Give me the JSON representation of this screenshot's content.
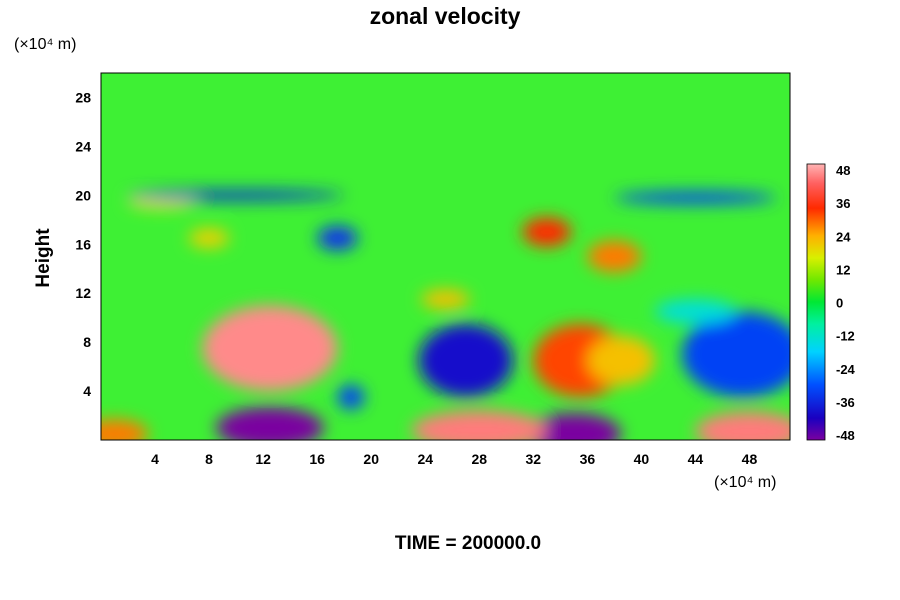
{
  "chart_data": {
    "type": "heatmap",
    "title": "zonal velocity",
    "ylabel": "Height",
    "y_unit": "(×10⁴ m)",
    "x_unit": "(×10⁴ m)",
    "footer": "TIME = 200000.0",
    "xlim": [
      0,
      51
    ],
    "ylim": [
      0,
      30
    ],
    "x_ticks": [
      4,
      8,
      12,
      16,
      20,
      24,
      28,
      32,
      36,
      40,
      44,
      48
    ],
    "y_ticks": [
      4,
      8,
      12,
      16,
      20,
      24,
      28
    ],
    "colorbar": {
      "range": [
        -48,
        48
      ],
      "ticks": [
        48,
        36,
        24,
        12,
        0,
        -12,
        -24,
        -36,
        -48
      ]
    },
    "features": [
      {
        "x": 12.5,
        "y": 7.5,
        "rx": 5.0,
        "ry": 3.5,
        "value": 45
      },
      {
        "x": 35.5,
        "y": 6.5,
        "rx": 3.5,
        "ry": 3.0,
        "value": 32
      },
      {
        "x": 38.5,
        "y": 6.5,
        "rx": 2.5,
        "ry": 2.0,
        "value": 22
      },
      {
        "x": 27.0,
        "y": 6.5,
        "rx": 3.5,
        "ry": 3.0,
        "value": -38
      },
      {
        "x": 47.5,
        "y": 7.0,
        "rx": 4.5,
        "ry": 3.5,
        "value": -30
      },
      {
        "x": 12.5,
        "y": 1.0,
        "rx": 4.0,
        "ry": 1.7,
        "value": -48
      },
      {
        "x": 35.0,
        "y": 0.5,
        "rx": 3.5,
        "ry": 1.7,
        "value": -48
      },
      {
        "x": 28.0,
        "y": 0.8,
        "rx": 5.0,
        "ry": 1.6,
        "value": 44
      },
      {
        "x": 48.0,
        "y": 0.7,
        "rx": 4.0,
        "ry": 1.6,
        "value": 44
      },
      {
        "x": 1.0,
        "y": 0.5,
        "rx": 2.5,
        "ry": 1.2,
        "value": 28
      },
      {
        "x": 33.0,
        "y": 17.0,
        "rx": 1.8,
        "ry": 1.2,
        "value": 34
      },
      {
        "x": 38.0,
        "y": 15.0,
        "rx": 2.0,
        "ry": 1.3,
        "value": 28
      },
      {
        "x": 17.5,
        "y": 16.5,
        "rx": 1.5,
        "ry": 1.0,
        "value": -32
      },
      {
        "x": 25.5,
        "y": 11.5,
        "rx": 1.8,
        "ry": 0.8,
        "value": 22
      },
      {
        "x": 4.5,
        "y": 19.5,
        "rx": 2.5,
        "ry": 0.6,
        "value": 18
      },
      {
        "x": 10.0,
        "y": 20.0,
        "rx": 8.0,
        "ry": 0.4,
        "value": -34
      },
      {
        "x": 44.0,
        "y": 19.8,
        "rx": 6.0,
        "ry": 0.5,
        "value": -30
      },
      {
        "x": 8.0,
        "y": 16.5,
        "rx": 1.5,
        "ry": 0.8,
        "value": 20
      },
      {
        "x": 44.0,
        "y": 10.5,
        "rx": 3.0,
        "ry": 1.0,
        "value": -14
      },
      {
        "x": 18.5,
        "y": 3.5,
        "rx": 1.0,
        "ry": 1.0,
        "value": -30
      }
    ]
  }
}
